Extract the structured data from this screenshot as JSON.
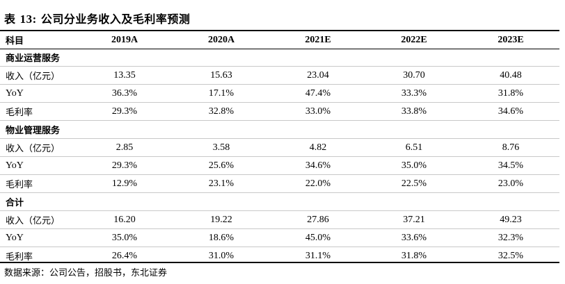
{
  "title": {
    "prefix": "表",
    "number": "13:",
    "text": "公司分业务收入及毛利率预测"
  },
  "header": {
    "label": "科目",
    "years": [
      "2019A",
      "2020A",
      "2021E",
      "2022E",
      "2023E"
    ]
  },
  "sections": [
    {
      "name": "商业运营服务",
      "rows": [
        {
          "label": "收入（亿元）",
          "values": [
            "13.35",
            "15.63",
            "23.04",
            "30.70",
            "40.48"
          ]
        },
        {
          "label": "YoY",
          "values": [
            "36.3%",
            "17.1%",
            "47.4%",
            "33.3%",
            "31.8%"
          ]
        },
        {
          "label": "毛利率",
          "values": [
            "29.3%",
            "32.8%",
            "33.0%",
            "33.8%",
            "34.6%"
          ]
        }
      ]
    },
    {
      "name": "物业管理服务",
      "rows": [
        {
          "label": "收入（亿元）",
          "values": [
            "2.85",
            "3.58",
            "4.82",
            "6.51",
            "8.76"
          ]
        },
        {
          "label": "YoY",
          "values": [
            "29.3%",
            "25.6%",
            "34.6%",
            "35.0%",
            "34.5%"
          ]
        },
        {
          "label": "毛利率",
          "values": [
            "12.9%",
            "23.1%",
            "22.0%",
            "22.5%",
            "23.0%"
          ]
        }
      ]
    },
    {
      "name": "合计",
      "rows": [
        {
          "label": "收入（亿元）",
          "values": [
            "16.20",
            "19.22",
            "27.86",
            "37.21",
            "49.23"
          ]
        },
        {
          "label": "YoY",
          "values": [
            "35.0%",
            "18.6%",
            "45.0%",
            "33.6%",
            "32.3%"
          ]
        },
        {
          "label": "毛利率",
          "values": [
            "26.4%",
            "31.0%",
            "31.1%",
            "31.8%",
            "32.5%"
          ]
        }
      ]
    }
  ],
  "source": "数据来源：公司公告，招股书，东北证券"
}
